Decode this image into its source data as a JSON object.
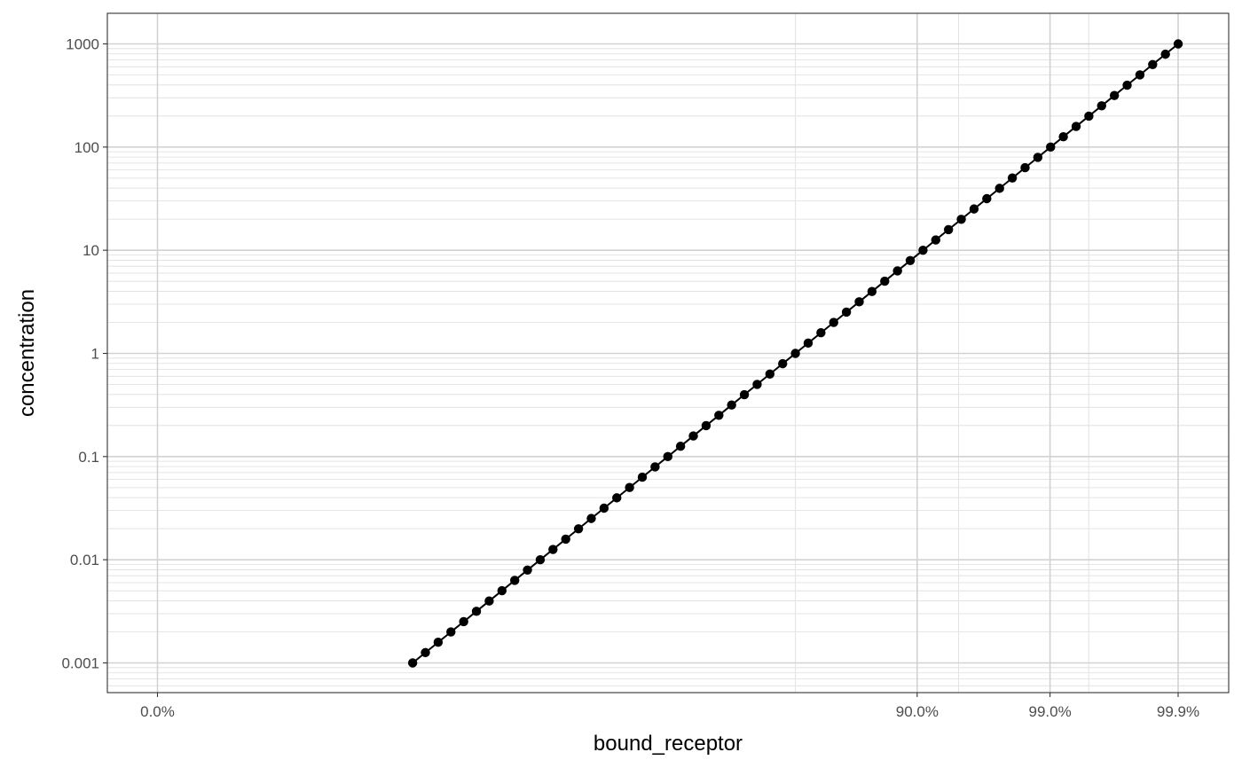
{
  "chart_data": {
    "type": "line",
    "xlabel": "bound_receptor",
    "ylabel": "concentration",
    "x_scale": "logit",
    "y_scale": "log10",
    "grid": true,
    "legend": "none",
    "xlim": [
      1e-06,
      0.9991
    ],
    "ylim": [
      0.00083,
      1900
    ],
    "x_ticks": [
      {
        "value": 1e-05,
        "label": "0.0%"
      },
      {
        "value": 0.9,
        "label": "90.0%"
      },
      {
        "value": 0.99,
        "label": "99.0%"
      },
      {
        "value": 0.999,
        "label": "99.9%"
      }
    ],
    "x_minor": [
      0.5,
      0.95,
      0.995
    ],
    "y_ticks": [
      {
        "value": 0.001,
        "label": "0.001"
      },
      {
        "value": 0.01,
        "label": "0.01"
      },
      {
        "value": 0.1,
        "label": "0.1"
      },
      {
        "value": 1,
        "label": "1"
      },
      {
        "value": 10,
        "label": "10"
      },
      {
        "value": 100,
        "label": "100"
      },
      {
        "value": 1000,
        "label": "1000"
      }
    ],
    "series": [
      {
        "binding_constant_kd": 1,
        "concentration_range": [
          0.001,
          1000
        ],
        "points_per_decade": 10,
        "marker": "circle",
        "line": true,
        "color": "#000000"
      }
    ]
  }
}
